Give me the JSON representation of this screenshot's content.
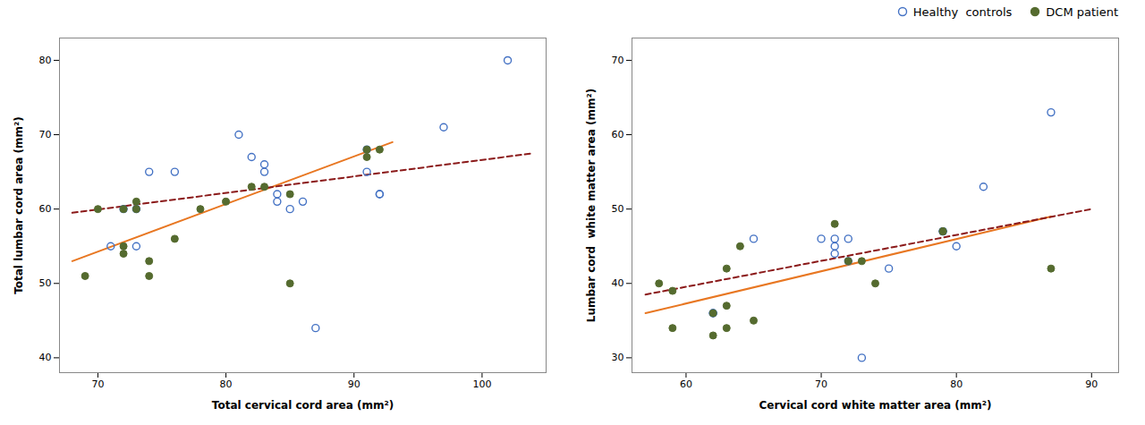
{
  "chart_data": [
    {
      "type": "scatter",
      "xlabel": "Total cervical cord area (mm²)",
      "ylabel": "Total lumbar cord area (mm²)",
      "xlim": [
        67,
        105
      ],
      "ylim": [
        38,
        83
      ],
      "xticks": [
        70,
        80,
        90,
        100
      ],
      "yticks": [
        40,
        50,
        60,
        70,
        80
      ],
      "series": [
        {
          "name": "Healthy  controls",
          "color": "#4472C4",
          "marker": "open_circle",
          "x": [
            71,
            72,
            73,
            73,
            74,
            76,
            81,
            82,
            83,
            83,
            84,
            84,
            85,
            86,
            87,
            91,
            91,
            92,
            92,
            97,
            102
          ],
          "values": [
            55,
            60,
            55,
            60,
            65,
            65,
            70,
            67,
            65,
            66,
            61,
            62,
            60,
            61,
            44,
            68,
            65,
            62,
            62,
            71,
            80
          ]
        },
        {
          "name": "DCM patient",
          "color": "#556B2F",
          "marker": "circle",
          "x": [
            69,
            70,
            72,
            72,
            72,
            73,
            73,
            74,
            74,
            76,
            78,
            80,
            82,
            83,
            85,
            85,
            91,
            91,
            92
          ],
          "values": [
            51,
            60,
            55,
            54,
            60,
            61,
            60,
            53,
            51,
            56,
            60,
            61,
            63,
            63,
            50,
            62,
            68,
            67,
            68
          ]
        },
        {
          "type": "line",
          "color": "#E87722",
          "line_style": "solid",
          "x": [
            68,
            93
          ],
          "values": [
            53,
            69
          ]
        },
        {
          "type": "line",
          "color": "#8B1A1A",
          "line_style": "dashed",
          "x": [
            68,
            104
          ],
          "values": [
            59.5,
            67.5
          ]
        }
      ]
    },
    {
      "type": "scatter",
      "xlabel": "Cervical cord white matter area (mm²)",
      "ylabel": "Lumbar cord  white matter area (mm²)",
      "xlim": [
        56,
        92
      ],
      "ylim": [
        28,
        73
      ],
      "xticks": [
        60,
        70,
        80,
        90
      ],
      "yticks": [
        30,
        40,
        50,
        60,
        70
      ],
      "legend": "upper right",
      "series": [
        {
          "name": "Healthy  controls",
          "color": "#4472C4",
          "marker": "open_circle",
          "x": [
            62,
            62,
            65,
            70,
            71,
            71,
            71,
            72,
            72,
            73,
            75,
            79,
            79,
            80,
            82,
            87
          ],
          "values": [
            36,
            36,
            46,
            46,
            45,
            46,
            44,
            43,
            46,
            30,
            42,
            47,
            47,
            45,
            53,
            63
          ]
        },
        {
          "name": "DCM patient",
          "color": "#556B2F",
          "marker": "circle",
          "x": [
            58,
            59,
            59,
            62,
            62,
            63,
            63,
            63,
            64,
            65,
            71,
            72,
            73,
            74,
            79,
            79,
            87
          ],
          "values": [
            40,
            39,
            34,
            36,
            33,
            42,
            37,
            34,
            45,
            35,
            48,
            43,
            43,
            40,
            47,
            47,
            42
          ]
        },
        {
          "type": "line",
          "color": "#E87722",
          "line_style": "solid",
          "x": [
            57,
            87
          ],
          "values": [
            36,
            49
          ]
        },
        {
          "type": "line",
          "color": "#8B1A1A",
          "line_style": "dashed",
          "x": [
            57,
            90
          ],
          "values": [
            38.5,
            50
          ]
        }
      ]
    }
  ]
}
